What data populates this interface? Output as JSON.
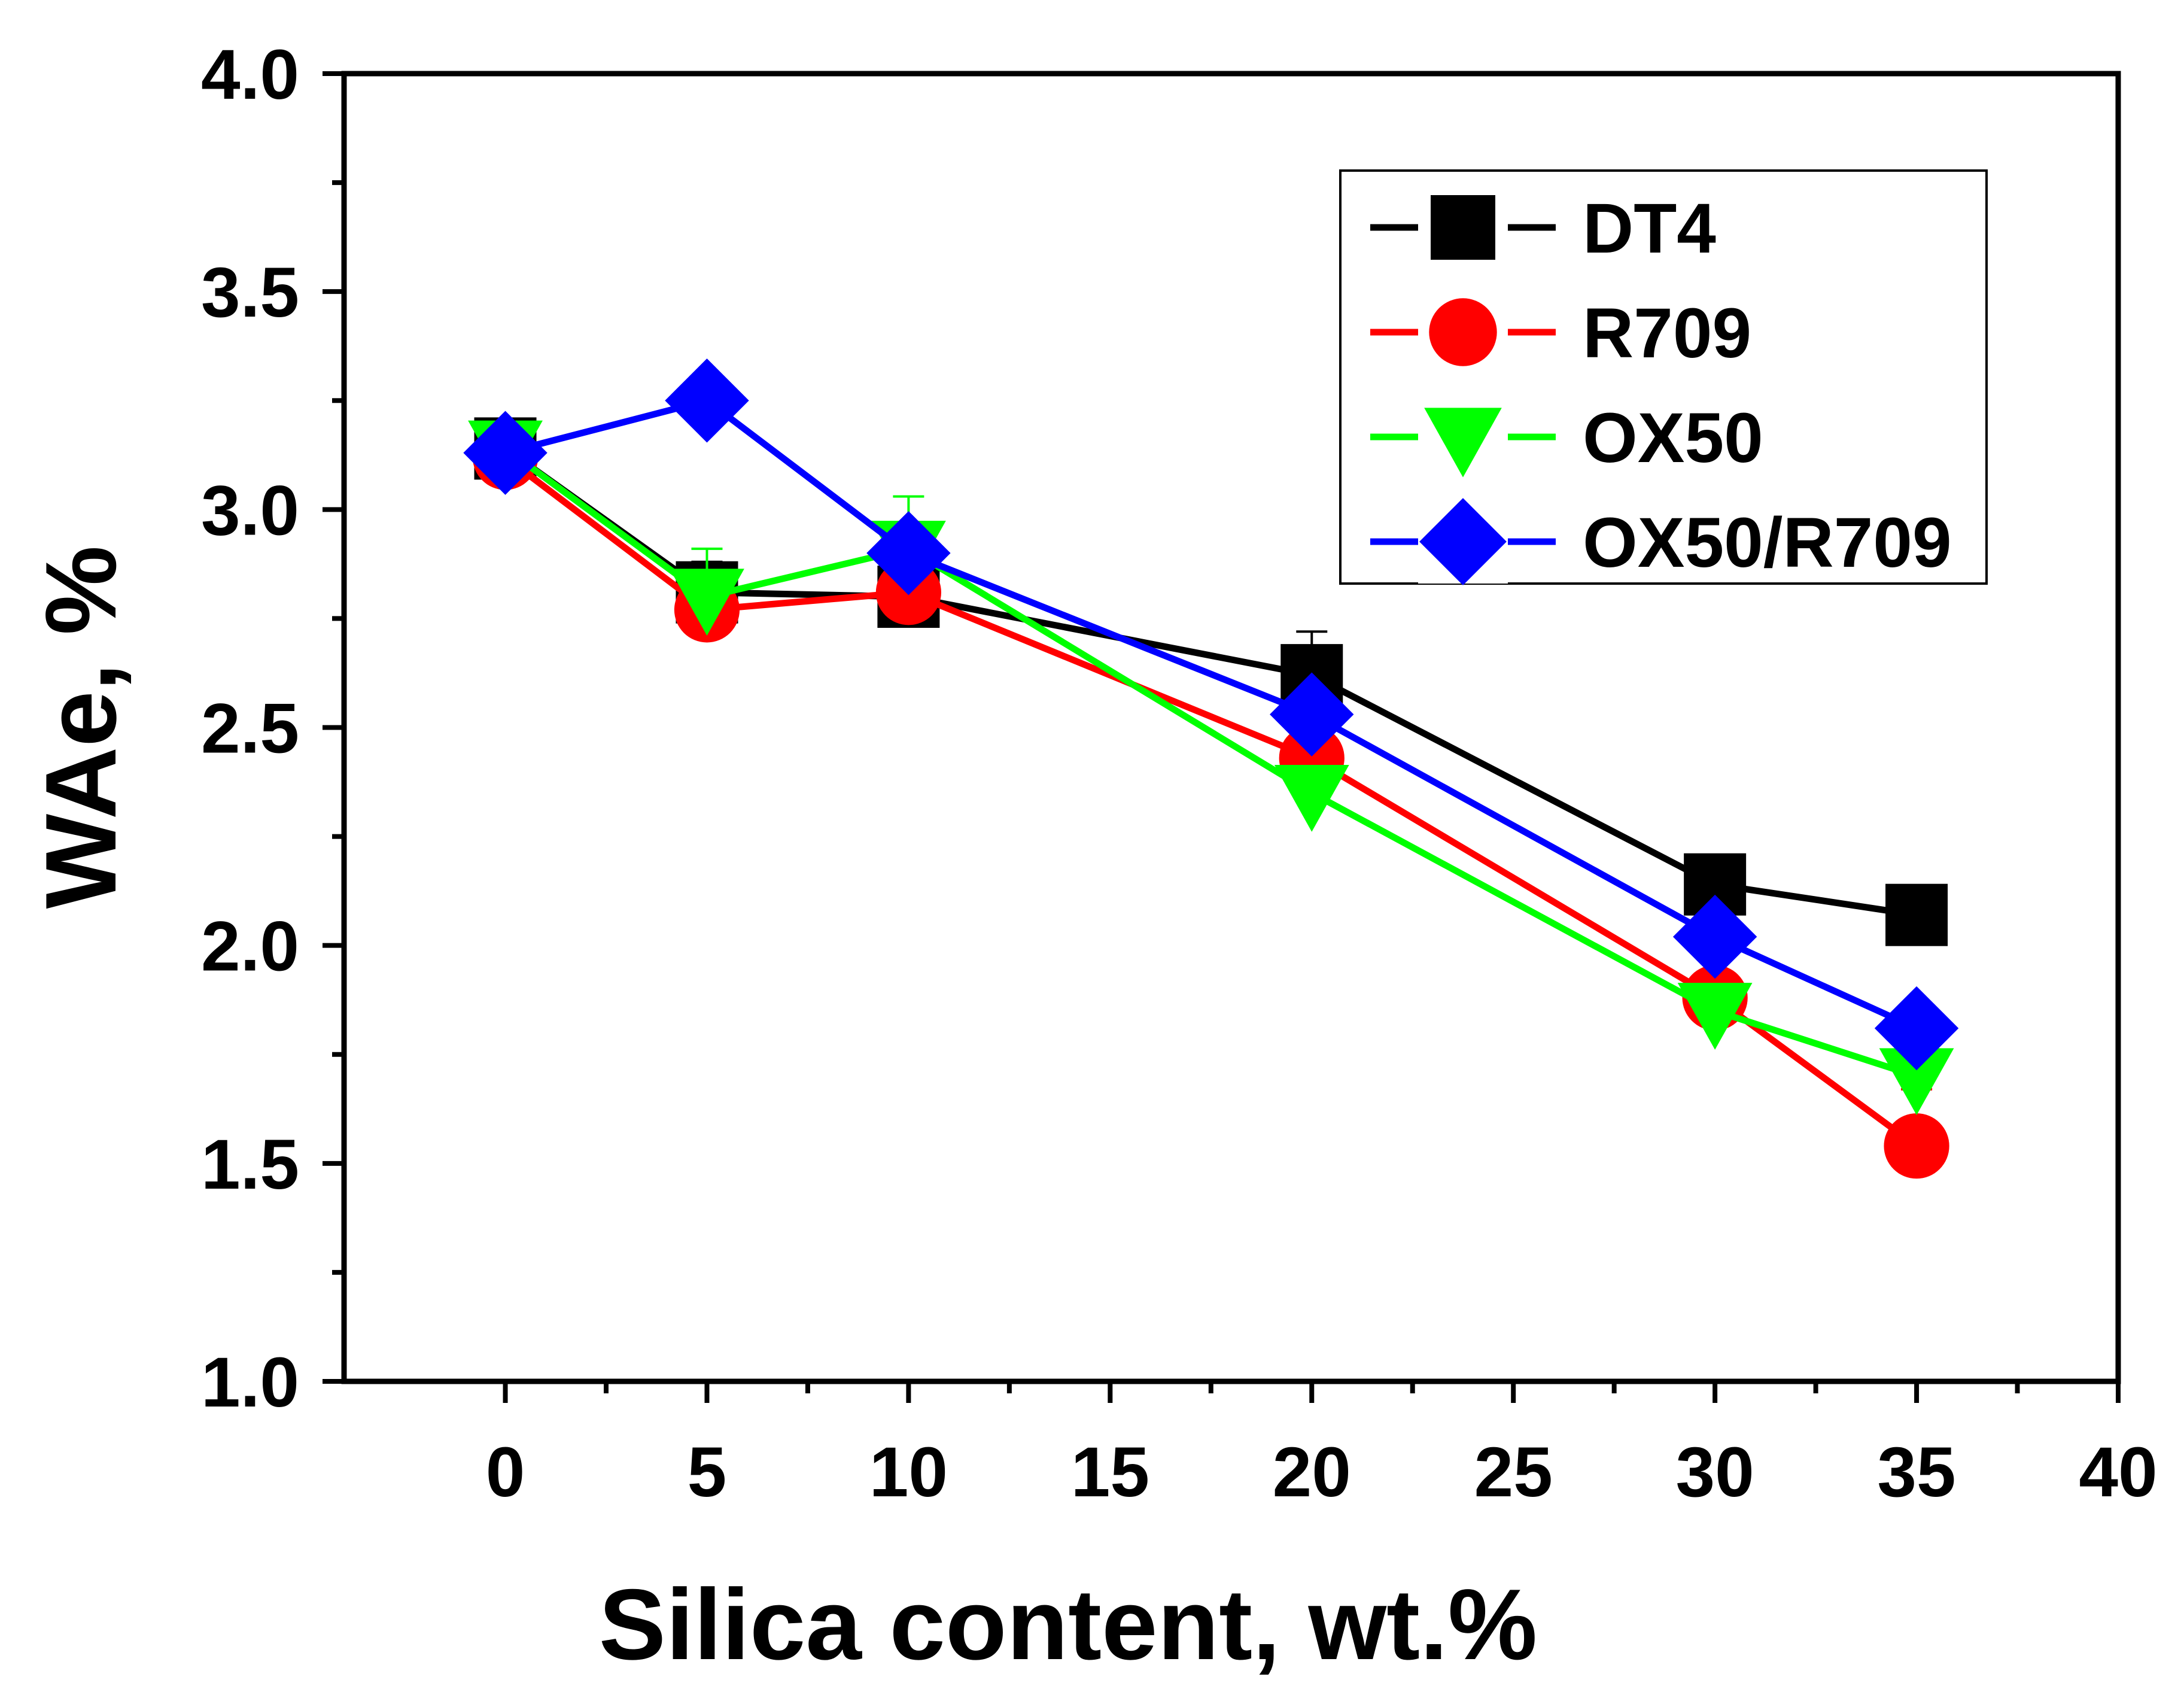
{
  "chart_data": {
    "type": "line",
    "title": "",
    "xlabel": "Silica content, wt.%",
    "ylabel": "WAe, %",
    "xlim": [
      -4,
      40
    ],
    "ylim": [
      1.0,
      4.0
    ],
    "x_ticks": [
      0,
      5,
      10,
      15,
      20,
      25,
      30,
      35,
      40
    ],
    "x_tick_labels": [
      "0",
      "5",
      "10",
      "15",
      "20",
      "25",
      "30",
      "35",
      "40"
    ],
    "y_ticks": [
      1.0,
      1.5,
      2.0,
      2.5,
      3.0,
      3.5,
      4.0
    ],
    "y_tick_labels": [
      "1.0",
      "1.5",
      "2.0",
      "2.5",
      "3.0",
      "3.5",
      "4.0"
    ],
    "grid": false,
    "legend_position": "top-right",
    "series": [
      {
        "name": "DT4",
        "color": "#000000",
        "marker": "square",
        "x": [
          0,
          5,
          10,
          20,
          30,
          35
        ],
        "y": [
          3.14,
          2.81,
          2.8,
          2.62,
          2.14,
          2.07
        ],
        "errors": [
          0.06,
          0.07,
          0.05,
          0.1,
          0.04,
          0.04
        ]
      },
      {
        "name": "R709",
        "color": "#ff0000",
        "marker": "circle",
        "x": [
          0,
          5,
          10,
          20,
          30,
          35
        ],
        "y": [
          3.12,
          2.77,
          2.81,
          2.43,
          1.88,
          1.54
        ],
        "errors": [
          0.05,
          0.05,
          0.11,
          0.06,
          0.05,
          0.13
        ]
      },
      {
        "name": "OX50",
        "color": "#00ff00",
        "marker": "triangle-down",
        "x": [
          0,
          5,
          10,
          20,
          30,
          35
        ],
        "y": [
          3.14,
          2.8,
          2.91,
          2.35,
          1.85,
          1.7
        ],
        "errors": [
          0.05,
          0.11,
          0.12,
          0.05,
          0.05,
          0.05
        ]
      },
      {
        "name": "OX50/R709",
        "color": "#0000ff",
        "marker": "diamond",
        "x": [
          0,
          5,
          10,
          20,
          30,
          35
        ],
        "y": [
          3.13,
          3.25,
          2.9,
          2.53,
          2.02,
          1.81
        ],
        "errors": [
          0.04,
          0.04,
          0.05,
          0.05,
          0.04,
          0.04
        ]
      }
    ]
  }
}
